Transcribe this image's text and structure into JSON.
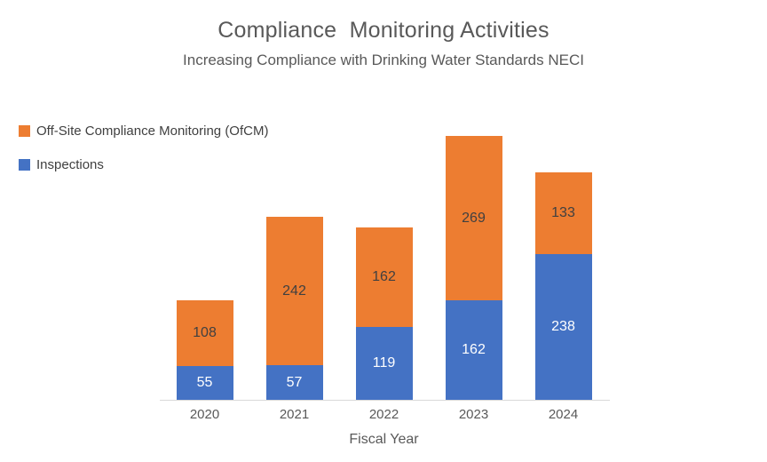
{
  "header": {
    "title": "Compliance  Monitoring Activities",
    "subtitle": "Increasing Compliance with Drinking Water Standards NECI"
  },
  "legend": {
    "position": "upper-left",
    "items": [
      {
        "label": "Off-Site Compliance Monitoring (OfCM)",
        "color": "#ED7D31"
      },
      {
        "label": "Inspections",
        "color": "#4472C4"
      }
    ]
  },
  "chart_data": {
    "type": "bar",
    "stacked": true,
    "title": "Compliance Monitoring Activities",
    "subtitle": "Increasing Compliance with Drinking Water Standards NECI",
    "xlabel": "Fiscal Year",
    "ylabel": "",
    "categories": [
      "2020",
      "2021",
      "2022",
      "2023",
      "2024"
    ],
    "series": [
      {
        "name": "Inspections",
        "color": "#4472C4",
        "label_color": "#FFFFFF",
        "values": [
          55,
          57,
          119,
          162,
          238
        ]
      },
      {
        "name": "Off-Site Compliance Monitoring (OfCM)",
        "color": "#ED7D31",
        "label_color": "#404040",
        "values": [
          108,
          242,
          162,
          269,
          133
        ]
      }
    ],
    "totals": [
      163,
      299,
      281,
      431,
      371
    ],
    "data_labels": "center",
    "grid": false,
    "y_axis_visible": false,
    "legend_position": "upper-left",
    "colors": {
      "axis_line": "#D9D9D9",
      "title_text": "#595959",
      "axis_text": "#595959",
      "legend_text": "#404040"
    }
  }
}
